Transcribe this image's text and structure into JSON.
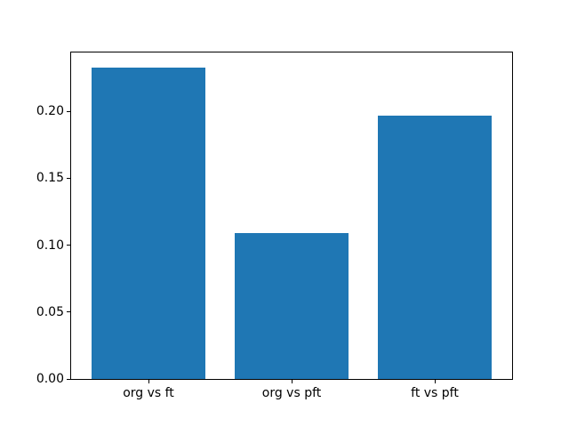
{
  "chart_data": {
    "type": "bar",
    "categories": [
      "org vs ft",
      "org vs pft",
      "ft vs pft"
    ],
    "values": [
      0.233,
      0.109,
      0.197
    ],
    "bar_color": "#1f77b4",
    "yticks": [
      0.0,
      0.05,
      0.1,
      0.15,
      0.2
    ],
    "ytick_labels": [
      "0.00",
      "0.05",
      "0.10",
      "0.15",
      "0.20"
    ],
    "ylim": [
      0,
      0.244
    ],
    "xlim": [
      -0.54,
      2.54
    ],
    "bar_width": 0.8,
    "grid": false,
    "axis_color": "#000000",
    "background_color": "#ffffff"
  }
}
